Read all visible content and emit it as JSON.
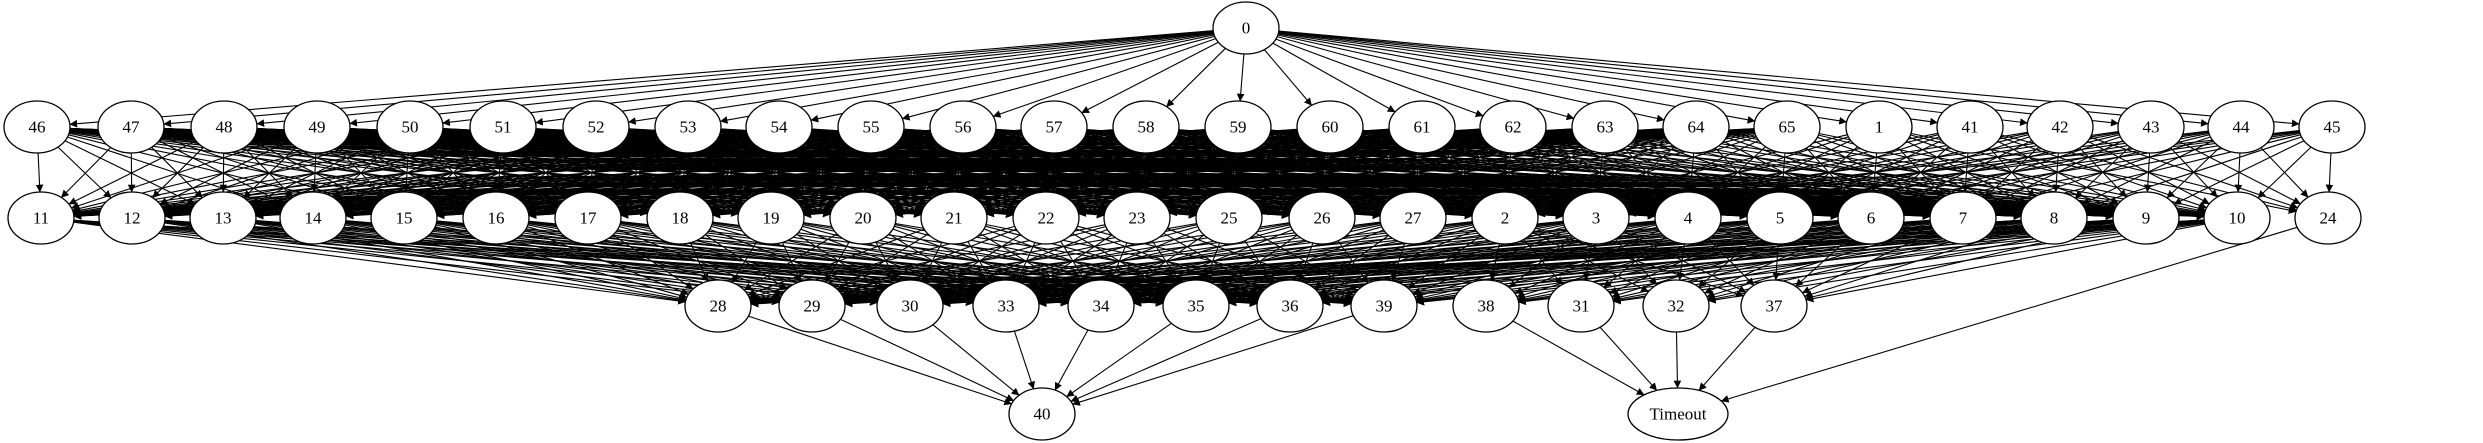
{
  "graph": {
    "title": "",
    "node_color": "#000000",
    "nodes": [
      {
        "id": "0"
      },
      {
        "id": "46"
      },
      {
        "id": "47"
      },
      {
        "id": "48"
      },
      {
        "id": "49"
      },
      {
        "id": "50"
      },
      {
        "id": "51"
      },
      {
        "id": "52"
      },
      {
        "id": "53"
      },
      {
        "id": "54"
      },
      {
        "id": "55"
      },
      {
        "id": "56"
      },
      {
        "id": "57"
      },
      {
        "id": "58"
      },
      {
        "id": "59"
      },
      {
        "id": "60"
      },
      {
        "id": "61"
      },
      {
        "id": "62"
      },
      {
        "id": "63"
      },
      {
        "id": "64"
      },
      {
        "id": "65"
      },
      {
        "id": "1"
      },
      {
        "id": "41"
      },
      {
        "id": "42"
      },
      {
        "id": "43"
      },
      {
        "id": "44"
      },
      {
        "id": "45"
      },
      {
        "id": "11"
      },
      {
        "id": "12"
      },
      {
        "id": "13"
      },
      {
        "id": "14"
      },
      {
        "id": "15"
      },
      {
        "id": "16"
      },
      {
        "id": "17"
      },
      {
        "id": "18"
      },
      {
        "id": "19"
      },
      {
        "id": "20"
      },
      {
        "id": "21"
      },
      {
        "id": "22"
      },
      {
        "id": "23"
      },
      {
        "id": "25"
      },
      {
        "id": "26"
      },
      {
        "id": "27"
      },
      {
        "id": "2"
      },
      {
        "id": "3"
      },
      {
        "id": "4"
      },
      {
        "id": "5"
      },
      {
        "id": "6"
      },
      {
        "id": "7"
      },
      {
        "id": "8"
      },
      {
        "id": "9"
      },
      {
        "id": "10"
      },
      {
        "id": "24"
      },
      {
        "id": "28"
      },
      {
        "id": "29"
      },
      {
        "id": "30"
      },
      {
        "id": "33"
      },
      {
        "id": "34"
      },
      {
        "id": "35"
      },
      {
        "id": "36"
      },
      {
        "id": "39"
      },
      {
        "id": "38"
      },
      {
        "id": "31"
      },
      {
        "id": "32"
      },
      {
        "id": "37"
      },
      {
        "id": "40",
        "color": "#0000ff"
      },
      {
        "id": "Timeout",
        "color": "#ff0000"
      }
    ],
    "edge_groups": [
      {
        "from": [
          "0"
        ],
        "to": [
          "46",
          "47",
          "48",
          "49",
          "50",
          "51",
          "52",
          "53",
          "54",
          "55",
          "56",
          "57",
          "58",
          "59",
          "60",
          "61",
          "62",
          "63",
          "64",
          "65",
          "1",
          "41",
          "42",
          "43",
          "44",
          "45"
        ]
      },
      {
        "from": [
          "46",
          "47",
          "48",
          "49",
          "50",
          "51",
          "52",
          "53",
          "54",
          "55",
          "56",
          "57",
          "58",
          "59",
          "60",
          "61",
          "62",
          "63",
          "64",
          "65"
        ],
        "to": [
          "11",
          "12",
          "13",
          "14",
          "15",
          "16",
          "17",
          "18",
          "19",
          "20",
          "21",
          "22",
          "23",
          "25",
          "26",
          "27",
          "2",
          "3",
          "4",
          "5",
          "6",
          "7",
          "8",
          "9",
          "10"
        ]
      },
      {
        "from": [
          "1",
          "41",
          "42",
          "43",
          "44",
          "45"
        ],
        "to": [
          "2",
          "3",
          "4",
          "5",
          "6",
          "7",
          "8",
          "9",
          "10",
          "24"
        ]
      },
      {
        "from": [
          "11",
          "12",
          "13",
          "14",
          "15",
          "16",
          "17",
          "18",
          "19",
          "20",
          "21",
          "22",
          "23",
          "25",
          "26",
          "27"
        ],
        "to": [
          "28",
          "29",
          "30",
          "33",
          "34",
          "35",
          "36",
          "39"
        ]
      },
      {
        "from": [
          "2",
          "3",
          "4",
          "5",
          "6",
          "7",
          "8",
          "9",
          "10"
        ],
        "to": [
          "28",
          "29",
          "30",
          "33",
          "34",
          "35",
          "36",
          "39",
          "38",
          "31",
          "32",
          "37"
        ]
      },
      {
        "from": [
          "28",
          "29",
          "30",
          "33",
          "34",
          "35",
          "36",
          "39"
        ],
        "to": [
          "40"
        ]
      },
      {
        "from": [
          "38",
          "31",
          "32",
          "37",
          "24"
        ],
        "to": [
          "Timeout"
        ]
      }
    ]
  }
}
